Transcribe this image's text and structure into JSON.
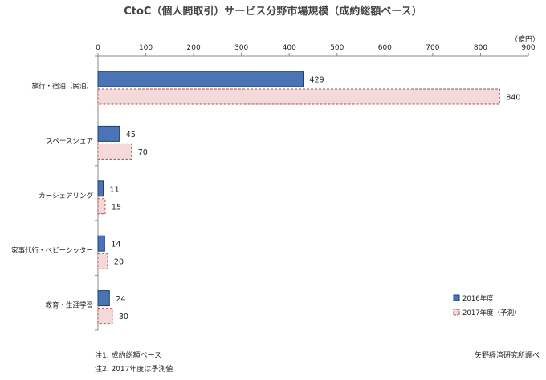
{
  "chart_data": {
    "type": "bar",
    "orientation": "horizontal",
    "title": "CtoC（個人間取引）サービス分野市場規模（成約総額ベース）",
    "unit_label": "（億円）",
    "categories": [
      "旅行・宿泊（民泊）",
      "スペースシェア",
      "カーシェアリング",
      "家事代行・ベビーシッター",
      "教育・生涯学習"
    ],
    "series": [
      {
        "name": "2016年度",
        "values": [
          429,
          45,
          11,
          14,
          24
        ],
        "color": "#4a74b6",
        "stroke": "#1f3f73"
      },
      {
        "name": "2017年度（予測）",
        "values": [
          840,
          70,
          15,
          20,
          30
        ],
        "color": "#f3d9da",
        "stroke": "#b44a4e"
      }
    ],
    "xlim": [
      0,
      900
    ],
    "xticks": [
      0,
      100,
      200,
      300,
      400,
      500,
      600,
      700,
      800,
      900
    ],
    "axis_position": "top",
    "grid": false,
    "legend_position": "bottom-right"
  },
  "notes": [
    "注1. 成約総額ベース",
    "注2. 2017年度は予測値"
  ],
  "source": "矢野経済研究所調べ"
}
